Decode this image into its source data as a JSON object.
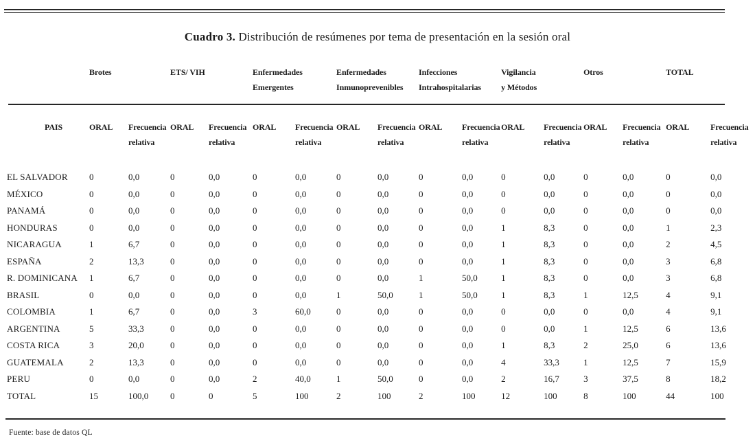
{
  "title": {
    "label": "Cuadro 3.",
    "text": " Distribución de resúmenes por tema de presentación en la sesión oral"
  },
  "table": {
    "col_groups": [
      {
        "line1": "Brotes",
        "line2": ""
      },
      {
        "line1": "ETS/ VIH",
        "line2": ""
      },
      {
        "line1": "Enfermedades",
        "line2": "Emergentes"
      },
      {
        "line1": "Enfermedades",
        "line2": "Inmunoprevenibles"
      },
      {
        "line1": "Infecciones",
        "line2": "Intrahospitalarias"
      },
      {
        "line1": "Vigilancia",
        "line2": "y Métodos"
      },
      {
        "line1": "Otros",
        "line2": ""
      },
      {
        "line1": "TOTAL",
        "line2": ""
      }
    ],
    "subheaders": {
      "country": "PAIS",
      "oral": "ORAL",
      "freq_line1": "Frecuencia",
      "freq_line2": "relativa"
    },
    "rows": [
      {
        "country": "EL SALVADOR",
        "values": [
          "0",
          "0,0",
          "0",
          "0,0",
          "0",
          "0,0",
          "0",
          "0,0",
          "0",
          "0,0",
          "0",
          "0,0",
          "0",
          "0,0",
          "0",
          "0,0"
        ]
      },
      {
        "country": "MÉXICO",
        "values": [
          "0",
          "0,0",
          "0",
          "0,0",
          "0",
          "0,0",
          "0",
          "0,0",
          "0",
          "0,0",
          "0",
          "0,0",
          "0",
          "0,0",
          "0",
          "0,0"
        ]
      },
      {
        "country": "PANAMÁ",
        "values": [
          "0",
          "0,0",
          "0",
          "0,0",
          "0",
          "0,0",
          "0",
          "0,0",
          "0",
          "0,0",
          "0",
          "0,0",
          "0",
          "0,0",
          "0",
          "0,0"
        ]
      },
      {
        "country": "HONDURAS",
        "values": [
          "0",
          "0,0",
          "0",
          "0,0",
          "0",
          "0,0",
          "0",
          "0,0",
          "0",
          "0,0",
          "1",
          "8,3",
          "0",
          "0,0",
          "1",
          "2,3"
        ]
      },
      {
        "country": "NICARAGUA",
        "values": [
          "1",
          "6,7",
          "0",
          "0,0",
          "0",
          "0,0",
          "0",
          "0,0",
          "0",
          "0,0",
          "1",
          "8,3",
          "0",
          "0,0",
          "2",
          "4,5"
        ]
      },
      {
        "country": "ESPAÑA",
        "values": [
          "2",
          "13,3",
          "0",
          "0,0",
          "0",
          "0,0",
          "0",
          "0,0",
          "0",
          "0,0",
          "1",
          "8,3",
          "0",
          "0,0",
          "3",
          "6,8"
        ]
      },
      {
        "country": "R. DOMINICANA",
        "values": [
          "1",
          "6,7",
          "0",
          "0,0",
          "0",
          "0,0",
          "0",
          "0,0",
          "1",
          "50,0",
          "1",
          "8,3",
          "0",
          "0,0",
          "3",
          "6,8"
        ]
      },
      {
        "country": "BRASIL",
        "values": [
          "0",
          "0,0",
          "0",
          "0,0",
          "0",
          "0,0",
          "1",
          "50,0",
          "1",
          "50,0",
          "1",
          "8,3",
          "1",
          "12,5",
          "4",
          "9,1"
        ]
      },
      {
        "country": "COLOMBIA",
        "values": [
          "1",
          "6,7",
          "0",
          "0,0",
          "3",
          "60,0",
          "0",
          "0,0",
          "0",
          "0,0",
          "0",
          "0,0",
          "0",
          "0,0",
          "4",
          "9,1"
        ]
      },
      {
        "country": "ARGENTINA",
        "values": [
          "5",
          "33,3",
          "0",
          "0,0",
          "0",
          "0,0",
          "0",
          "0,0",
          "0",
          "0,0",
          "0",
          "0,0",
          "1",
          "12,5",
          "6",
          "13,6"
        ]
      },
      {
        "country": "COSTA RICA",
        "values": [
          "3",
          "20,0",
          "0",
          "0,0",
          "0",
          "0,0",
          "0",
          "0,0",
          "0",
          "0,0",
          "1",
          "8,3",
          "2",
          "25,0",
          "6",
          "13,6"
        ]
      },
      {
        "country": "GUATEMALA",
        "values": [
          "2",
          "13,3",
          "0",
          "0,0",
          "0",
          "0,0",
          "0",
          "0,0",
          "0",
          "0,0",
          "4",
          "33,3",
          "1",
          "12,5",
          "7",
          "15,9"
        ]
      },
      {
        "country": "PERU",
        "values": [
          "0",
          "0,0",
          "0",
          "0,0",
          "2",
          "40,0",
          "1",
          "50,0",
          "0",
          "0,0",
          "2",
          "16,7",
          "3",
          "37,5",
          "8",
          "18,2"
        ]
      },
      {
        "country": "TOTAL",
        "values": [
          "15",
          "100,0",
          "0",
          "0",
          "5",
          "100",
          "2",
          "100",
          "2",
          "100",
          "12",
          "100",
          "8",
          "100",
          "44",
          "100"
        ]
      }
    ]
  },
  "footer": {
    "source": "Fuente: base de datos QL"
  }
}
